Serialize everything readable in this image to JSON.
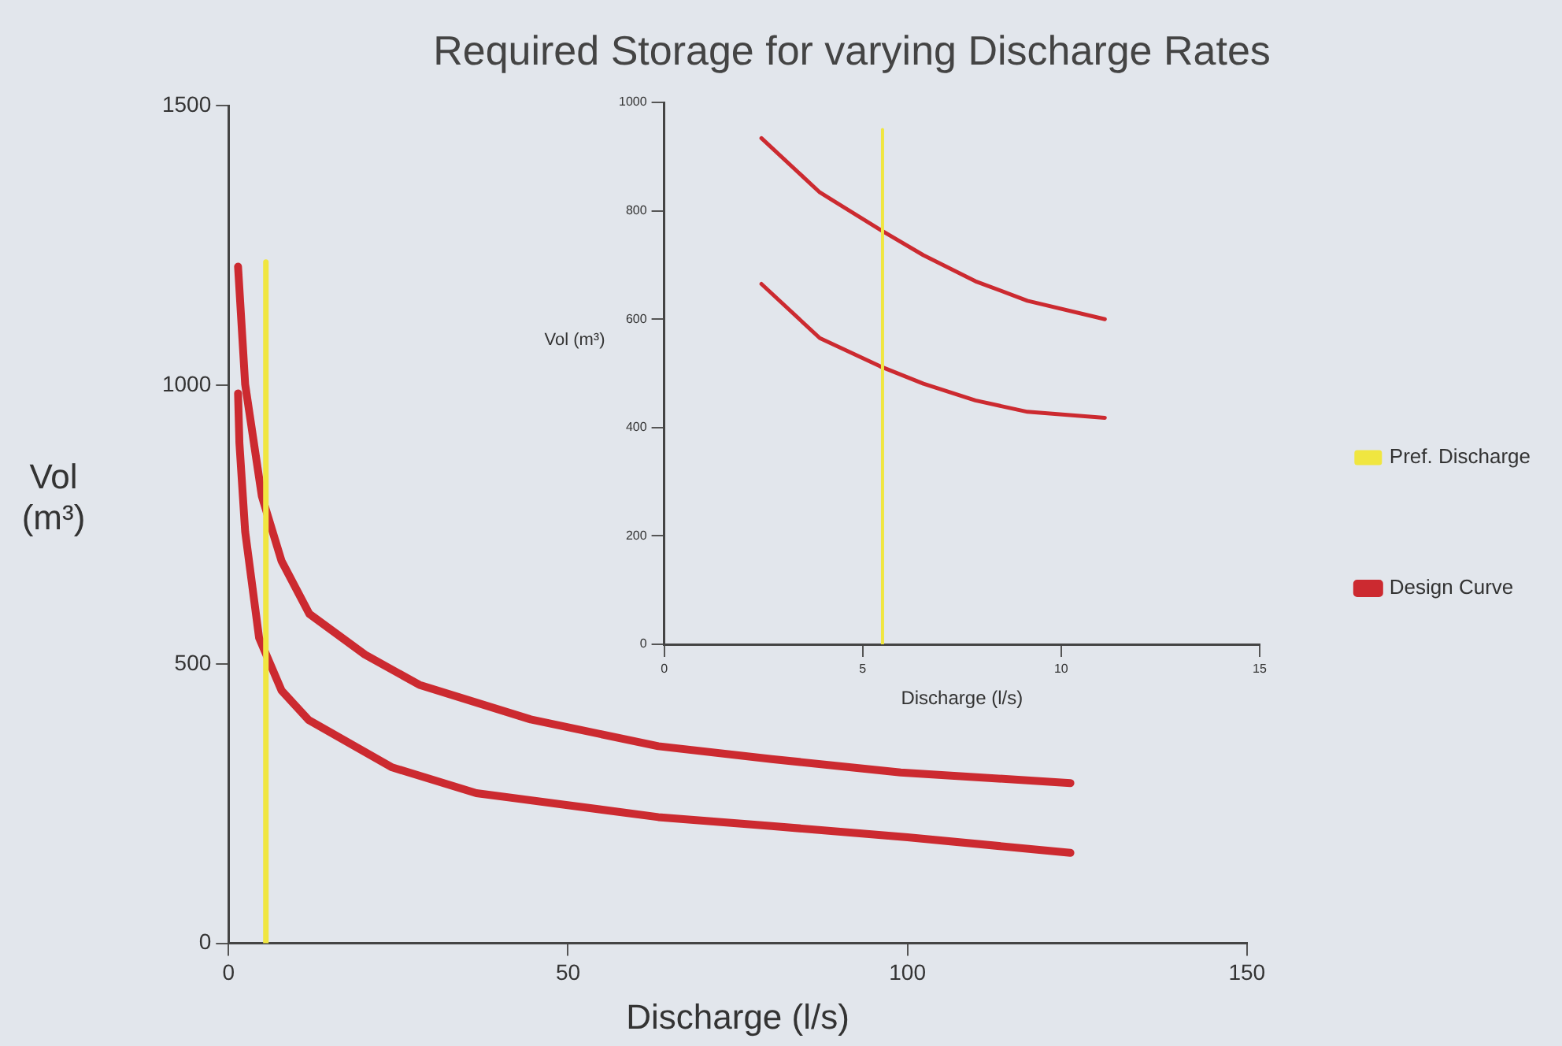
{
  "chart_data": [
    {
      "type": "line",
      "title": "Required Storage for varying Discharge Rates",
      "xlabel": "Discharge (l/s)",
      "ylabel": "Vol (m³)",
      "xlim": [
        0,
        150
      ],
      "xticks": [
        0,
        50,
        100,
        150
      ],
      "ylim": [
        0,
        1500
      ],
      "yticks": [
        0,
        500,
        1000,
        1500
      ],
      "grid": false,
      "legend": "right",
      "marker": "none",
      "series": [
        {
          "name": "Pref. Discharge",
          "color": "#f0e640",
          "x": [
            5.5,
            5.5
          ],
          "values": [
            0,
            1220
          ]
        },
        {
          "name": "Design Curve",
          "color": "#cc2a30",
          "x": [
            1.4,
            2.45,
            4.9,
            7.8,
            11.9,
            20.1,
            28.1,
            44.5,
            63.3,
            80,
            99,
            124
          ],
          "values": [
            1212,
            1001,
            801,
            685,
            590,
            517,
            463,
            401,
            353,
            330,
            306,
            287
          ]
        },
        {
          "color": "#cc2a30",
          "x": [
            1.4,
            1.6,
            2.45,
            4.5,
            7.8,
            11.8,
            24.1,
            36.5,
            63.3,
            80,
            100,
            124
          ],
          "values": [
            985,
            896,
            737,
            547,
            453,
            400,
            315,
            269,
            226,
            210,
            190,
            162
          ]
        }
      ]
    },
    {
      "type": "line",
      "xlabel": "Discharge (l/s)",
      "ylabel": "Vol (m³)",
      "xlim": [
        0,
        15
      ],
      "xticks": [
        0,
        5,
        10,
        15
      ],
      "ylim": [
        0,
        1000
      ],
      "yticks": [
        0,
        200,
        400,
        600,
        800,
        1000
      ],
      "grid": false,
      "legend": false,
      "marker": "none",
      "series": [
        {
          "color": "#f0e640",
          "x": [
            5.5,
            5.5
          ],
          "values": [
            0,
            950
          ]
        },
        {
          "color": "#cc2a30",
          "x": [
            2.45,
            3.92,
            5.44,
            6.53,
            7.84,
            9.15,
            11.1
          ],
          "values": [
            934,
            834,
            765,
            718,
            670,
            634,
            600
          ]
        },
        {
          "color": "#cc2a30",
          "x": [
            2.45,
            3.92,
            5.44,
            6.53,
            7.84,
            9.15,
            11.1
          ],
          "values": [
            665,
            565,
            513,
            481,
            450,
            429,
            418
          ]
        }
      ]
    }
  ]
}
